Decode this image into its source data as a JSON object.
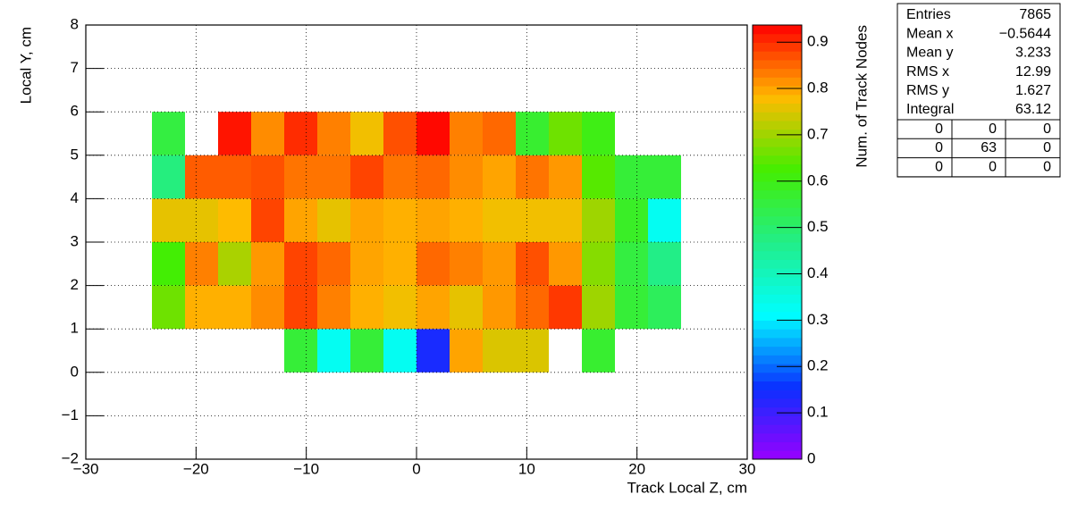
{
  "chart_data": {
    "type": "heatmap",
    "x_label": "Track Local Z, cm",
    "y_label": "Local Y, cm",
    "z_label": "Num. of Track Nodes",
    "xlim": [
      -30,
      30
    ],
    "ylim": [
      -2,
      8
    ],
    "zlim": [
      0,
      0.937
    ],
    "xticks": [
      {
        "value": -30,
        "label": "−30"
      },
      {
        "value": -20,
        "label": "−20"
      },
      {
        "value": -10,
        "label": "−10"
      },
      0,
      10,
      20,
      30
    ],
    "yticks": [
      {
        "value": -2,
        "label": "−2"
      },
      {
        "value": -1,
        "label": "−1"
      },
      0,
      1,
      2,
      3,
      4,
      5,
      6,
      7,
      8
    ],
    "zticks": [
      0,
      0.1,
      0.2,
      0.3,
      0.4,
      0.5,
      0.6,
      0.7,
      0.8,
      0.9
    ],
    "grid": true,
    "palette": [
      "#9900ff",
      "#0a30ff",
      "#00ffff",
      "#22ee88",
      "#44ee00",
      "#ffbb00",
      "#ff0000"
    ],
    "xbins": [
      -24,
      -21,
      -18,
      -15,
      -12,
      -9,
      -6,
      -3,
      0,
      3,
      6,
      9,
      12,
      15,
      18,
      21,
      24
    ],
    "ybins": [
      0,
      1,
      2,
      3,
      4,
      5,
      6
    ],
    "values": [
      [
        null,
        null,
        null,
        null,
        0.56,
        0.33,
        0.56,
        0.33,
        0.14,
        0.8,
        0.75,
        0.75,
        null,
        0.57,
        null,
        null
      ],
      [
        0.66,
        0.79,
        0.79,
        0.82,
        0.88,
        0.83,
        0.79,
        0.77,
        0.8,
        0.76,
        0.81,
        0.85,
        0.89,
        0.7,
        0.56,
        0.52
      ],
      [
        0.62,
        0.83,
        0.71,
        0.81,
        0.88,
        0.85,
        0.8,
        0.79,
        0.85,
        0.83,
        0.81,
        0.87,
        0.81,
        0.68,
        0.55,
        0.47
      ],
      [
        0.76,
        0.76,
        0.78,
        0.88,
        0.8,
        0.76,
        0.8,
        0.79,
        0.8,
        0.79,
        0.77,
        0.77,
        0.77,
        0.7,
        0.58,
        0.33
      ],
      [
        0.48,
        0.86,
        0.86,
        0.87,
        0.84,
        0.84,
        0.88,
        0.84,
        0.85,
        0.82,
        0.8,
        0.84,
        0.81,
        0.64,
        0.56,
        0.56
      ],
      [
        0.55,
        null,
        0.92,
        0.82,
        0.9,
        0.83,
        0.77,
        0.87,
        0.93,
        0.83,
        0.85,
        0.57,
        0.66,
        0.6,
        null,
        null
      ]
    ],
    "stats": [
      {
        "label": "Entries",
        "value": "7865"
      },
      {
        "label": "Mean x",
        "value": "−0.5644"
      },
      {
        "label": "Mean y",
        "value": "3.233"
      },
      {
        "label": "RMS x",
        "value": "12.99"
      },
      {
        "label": "RMS y",
        "value": "1.627"
      },
      {
        "label": "Integral",
        "value": "63.12"
      }
    ],
    "stats_grid": [
      [
        "0",
        "0",
        "0"
      ],
      [
        "0",
        "63",
        "0"
      ],
      [
        "0",
        "0",
        "0"
      ]
    ]
  }
}
